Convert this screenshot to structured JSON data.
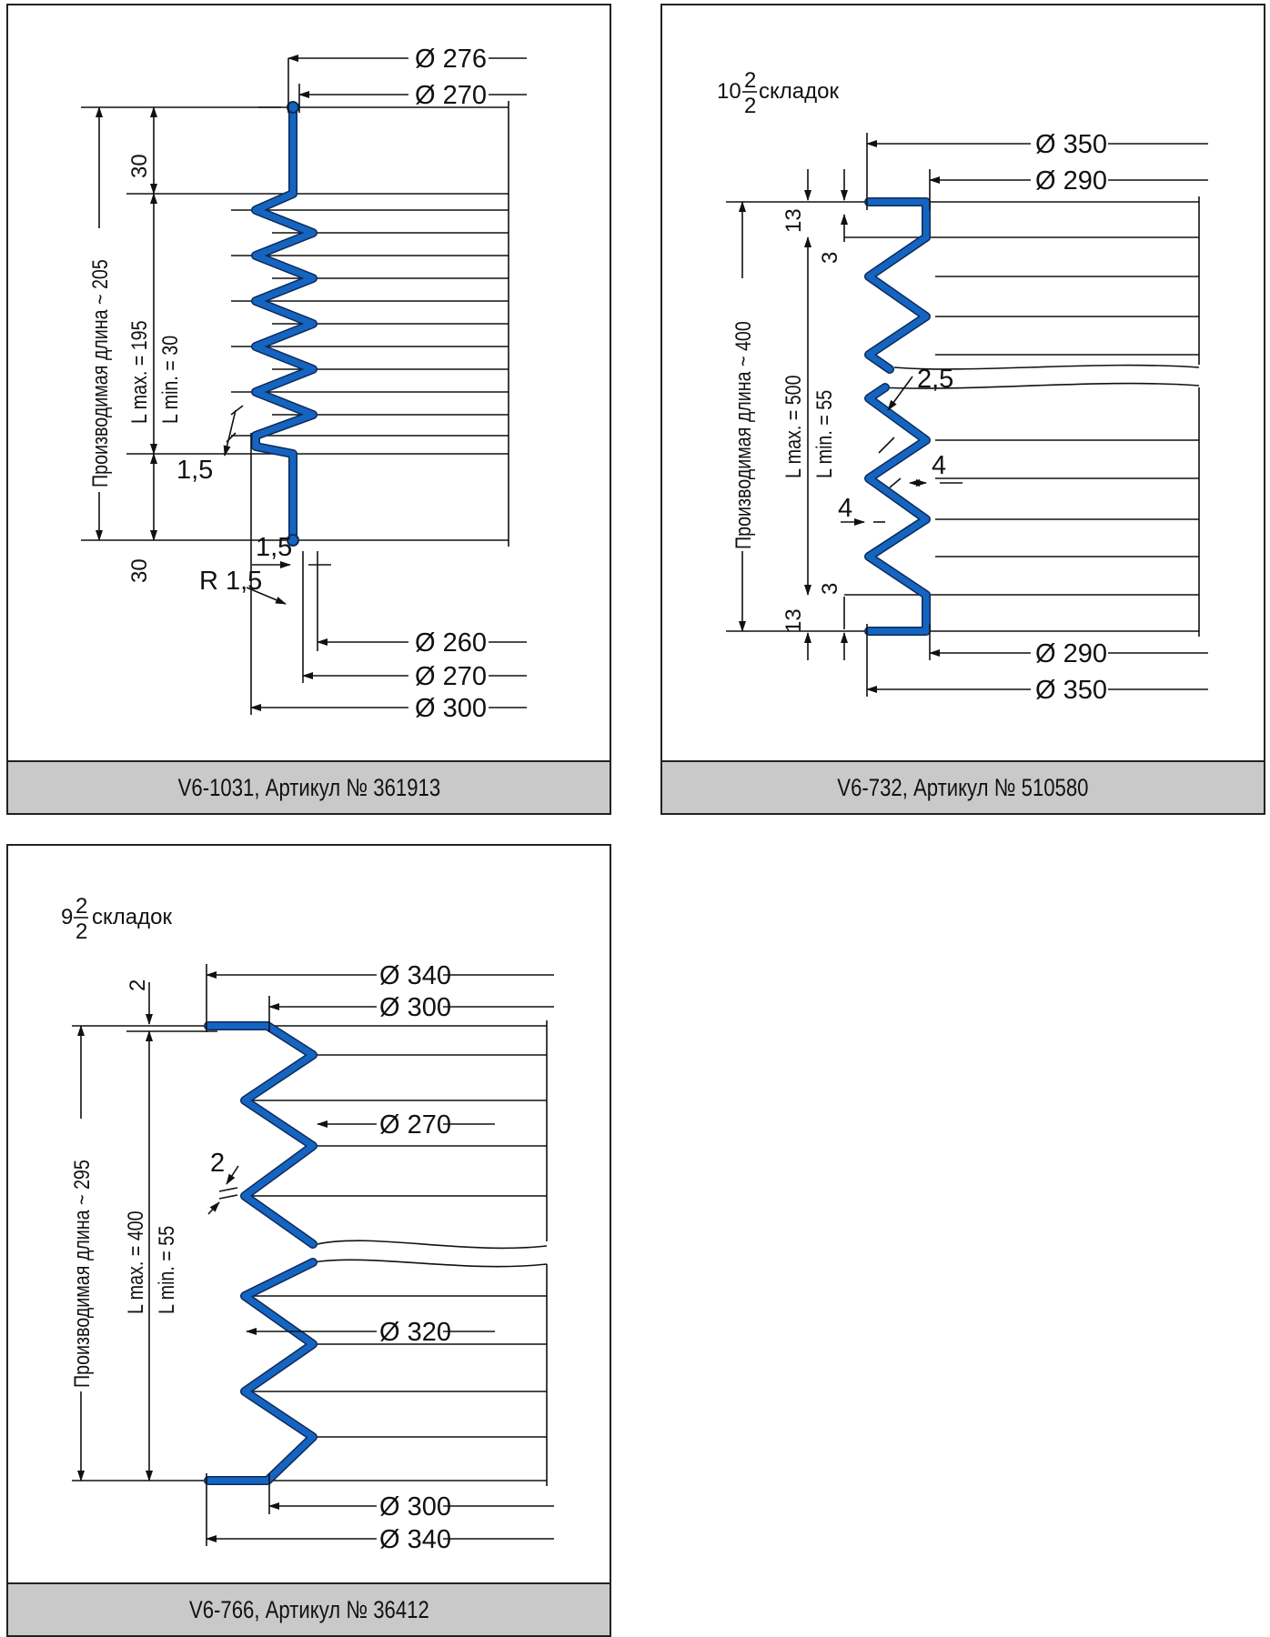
{
  "panels": [
    {
      "caption": "V6-1031, Артикул № 361913",
      "folds": "",
      "dims": {
        "d276": "Ø 276",
        "d270_top": "Ø 270",
        "d260": "Ø 260",
        "d270_bot": "Ø 270",
        "d300": "Ø 300",
        "length": "Производимая длина ~ 205",
        "lmax": "L max. = 195",
        "lmin": "L min.  = 30",
        "top30": "30",
        "bot30": "30",
        "thk1": "1,5",
        "thk2": "1,5",
        "radius": "R 1,5"
      }
    },
    {
      "caption": "V6-732, Артикул № 510580",
      "folds": {
        "whole": "10",
        "num": "2",
        "den": "2",
        "word": "складок"
      },
      "dims": {
        "d350_top": "Ø 350",
        "d290_top": "Ø 290",
        "d290_bot": "Ø 290",
        "d350_bot": "Ø 350",
        "length": "Производимая длина ~ 400",
        "lmax": "L max. = 500",
        "lmin": "L min.  = 55",
        "top13": "13",
        "bot13": "13",
        "top3": "3",
        "bot3": "3",
        "thk": "2,5",
        "w4a": "4",
        "w4b": "4"
      }
    },
    {
      "caption": "V6-766, Артикул № 36412",
      "folds": {
        "whole": "9",
        "num": "2",
        "den": "2",
        "word": "складок"
      },
      "dims": {
        "d340_top": "Ø 340",
        "d300_top": "Ø 300",
        "d270": "Ø 270",
        "d320": "Ø 320",
        "d300_bot": "Ø 300",
        "d340_bot": "Ø 340",
        "length": "Производимая длина ~ 295",
        "lmax": "L max. = 400",
        "lmin": "L min.  = 55",
        "top2": "2",
        "thk": "2"
      }
    }
  ]
}
